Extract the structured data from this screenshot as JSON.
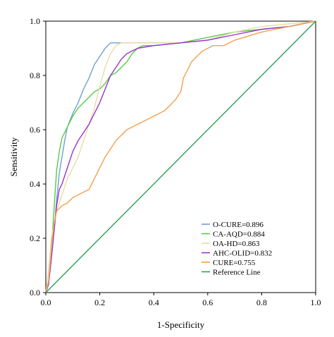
{
  "chart_data": {
    "type": "line",
    "title": "",
    "xlabel": "1-Specificity",
    "ylabel": "Sensitivity",
    "xlim": [
      0,
      1
    ],
    "ylim": [
      0,
      1
    ],
    "x_ticks": [
      "0.0",
      "0.2",
      "0.4",
      "0.6",
      "0.8",
      "1.0"
    ],
    "y_ticks": [
      "0.0",
      "0.2",
      "0.4",
      "0.6",
      "0.8",
      "1.0"
    ],
    "grid": false,
    "legend_position": "bottom-right",
    "series": [
      {
        "name": "O-CURE=0.896",
        "color": "#6f9fd8",
        "points": [
          [
            0,
            0
          ],
          [
            0.01,
            0.03
          ],
          [
            0.02,
            0.12
          ],
          [
            0.03,
            0.22
          ],
          [
            0.04,
            0.34
          ],
          [
            0.05,
            0.44
          ],
          [
            0.06,
            0.5
          ],
          [
            0.07,
            0.56
          ],
          [
            0.08,
            0.61
          ],
          [
            0.1,
            0.66
          ],
          [
            0.12,
            0.7
          ],
          [
            0.14,
            0.75
          ],
          [
            0.16,
            0.79
          ],
          [
            0.18,
            0.84
          ],
          [
            0.2,
            0.87
          ],
          [
            0.22,
            0.9
          ],
          [
            0.24,
            0.92
          ],
          [
            0.3,
            0.92
          ],
          [
            0.4,
            0.92
          ],
          [
            0.5,
            0.92
          ],
          [
            0.6,
            0.93
          ],
          [
            0.7,
            0.96
          ],
          [
            0.8,
            0.97
          ],
          [
            0.9,
            0.98
          ],
          [
            1.0,
            1.0
          ]
        ]
      },
      {
        "name": "CA-AQD=0.884",
        "color": "#55cc44",
        "points": [
          [
            0,
            0
          ],
          [
            0.01,
            0.03
          ],
          [
            0.02,
            0.15
          ],
          [
            0.03,
            0.3
          ],
          [
            0.04,
            0.45
          ],
          [
            0.05,
            0.52
          ],
          [
            0.06,
            0.57
          ],
          [
            0.08,
            0.61
          ],
          [
            0.1,
            0.65
          ],
          [
            0.12,
            0.68
          ],
          [
            0.14,
            0.7
          ],
          [
            0.16,
            0.72
          ],
          [
            0.18,
            0.74
          ],
          [
            0.2,
            0.75
          ],
          [
            0.22,
            0.77
          ],
          [
            0.24,
            0.8
          ],
          [
            0.26,
            0.81
          ],
          [
            0.28,
            0.83
          ],
          [
            0.3,
            0.85
          ],
          [
            0.32,
            0.88
          ],
          [
            0.34,
            0.9
          ],
          [
            0.36,
            0.91
          ],
          [
            0.4,
            0.91
          ],
          [
            0.5,
            0.92
          ],
          [
            0.6,
            0.94
          ],
          [
            0.7,
            0.96
          ],
          [
            0.8,
            0.97
          ],
          [
            0.9,
            0.98
          ],
          [
            1.0,
            1.0
          ]
        ]
      },
      {
        "name": "OA-HD=0.863",
        "color": "#e8dca8",
        "points": [
          [
            0,
            0
          ],
          [
            0.01,
            0.08
          ],
          [
            0.02,
            0.2
          ],
          [
            0.04,
            0.3
          ],
          [
            0.06,
            0.36
          ],
          [
            0.08,
            0.42
          ],
          [
            0.1,
            0.46
          ],
          [
            0.12,
            0.5
          ],
          [
            0.14,
            0.56
          ],
          [
            0.16,
            0.62
          ],
          [
            0.18,
            0.68
          ],
          [
            0.2,
            0.76
          ],
          [
            0.22,
            0.83
          ],
          [
            0.24,
            0.88
          ],
          [
            0.26,
            0.91
          ],
          [
            0.28,
            0.92
          ],
          [
            0.4,
            0.92
          ],
          [
            0.5,
            0.92
          ],
          [
            0.6,
            0.93
          ],
          [
            0.7,
            0.96
          ],
          [
            0.8,
            0.98
          ],
          [
            0.9,
            0.99
          ],
          [
            1.0,
            1.0
          ]
        ]
      },
      {
        "name": "AHC-OLID=0.832",
        "color": "#9a33cc",
        "points": [
          [
            0,
            0
          ],
          [
            0.01,
            0.03
          ],
          [
            0.02,
            0.12
          ],
          [
            0.03,
            0.22
          ],
          [
            0.04,
            0.32
          ],
          [
            0.05,
            0.38
          ],
          [
            0.06,
            0.4
          ],
          [
            0.08,
            0.46
          ],
          [
            0.1,
            0.52
          ],
          [
            0.12,
            0.56
          ],
          [
            0.14,
            0.59
          ],
          [
            0.16,
            0.62
          ],
          [
            0.18,
            0.66
          ],
          [
            0.2,
            0.7
          ],
          [
            0.22,
            0.75
          ],
          [
            0.24,
            0.8
          ],
          [
            0.26,
            0.83
          ],
          [
            0.28,
            0.86
          ],
          [
            0.3,
            0.88
          ],
          [
            0.32,
            0.89
          ],
          [
            0.34,
            0.9
          ],
          [
            0.4,
            0.91
          ],
          [
            0.5,
            0.92
          ],
          [
            0.6,
            0.93
          ],
          [
            0.7,
            0.95
          ],
          [
            0.8,
            0.97
          ],
          [
            0.9,
            0.98
          ],
          [
            1.0,
            1.0
          ]
        ]
      },
      {
        "name": "CURE=0.755",
        "color": "#f0a050",
        "points": [
          [
            0,
            0
          ],
          [
            0.01,
            0.04
          ],
          [
            0.02,
            0.15
          ],
          [
            0.03,
            0.25
          ],
          [
            0.04,
            0.3
          ],
          [
            0.06,
            0.32
          ],
          [
            0.08,
            0.33
          ],
          [
            0.1,
            0.35
          ],
          [
            0.12,
            0.36
          ],
          [
            0.14,
            0.37
          ],
          [
            0.16,
            0.38
          ],
          [
            0.18,
            0.42
          ],
          [
            0.2,
            0.46
          ],
          [
            0.22,
            0.5
          ],
          [
            0.24,
            0.53
          ],
          [
            0.26,
            0.56
          ],
          [
            0.28,
            0.58
          ],
          [
            0.3,
            0.6
          ],
          [
            0.32,
            0.61
          ],
          [
            0.34,
            0.62
          ],
          [
            0.36,
            0.63
          ],
          [
            0.38,
            0.64
          ],
          [
            0.4,
            0.65
          ],
          [
            0.42,
            0.66
          ],
          [
            0.44,
            0.67
          ],
          [
            0.46,
            0.69
          ],
          [
            0.48,
            0.71
          ],
          [
            0.5,
            0.74
          ],
          [
            0.51,
            0.79
          ],
          [
            0.52,
            0.81
          ],
          [
            0.54,
            0.85
          ],
          [
            0.56,
            0.87
          ],
          [
            0.58,
            0.89
          ],
          [
            0.6,
            0.9
          ],
          [
            0.62,
            0.91
          ],
          [
            0.66,
            0.91
          ],
          [
            0.7,
            0.93
          ],
          [
            0.8,
            0.96
          ],
          [
            0.9,
            0.98
          ],
          [
            1.0,
            1.0
          ]
        ]
      },
      {
        "name": "Reference Line",
        "color": "#2e9e5a",
        "points": [
          [
            0,
            0
          ],
          [
            1,
            1
          ]
        ]
      }
    ]
  }
}
